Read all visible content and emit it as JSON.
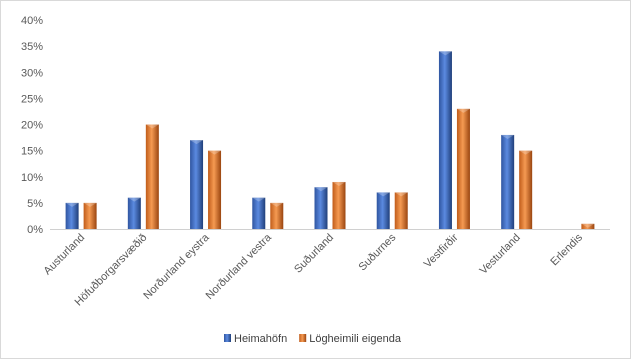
{
  "chart_data": {
    "type": "bar",
    "categories": [
      "Austurland",
      "Höfuðborgarsvæðið",
      "Norðurland eystra",
      "Norðurland vestra",
      "Suðurland",
      "Suðurnes",
      "Vestfirðir",
      "Vesturland",
      "Erlendis"
    ],
    "series": [
      {
        "name": "Heimahöfn",
        "color": "#4472c4",
        "values": [
          5,
          6,
          17,
          6,
          8,
          7,
          34,
          18,
          0
        ]
      },
      {
        "name": "Lögheimili eigenda",
        "color": "#ed7d31",
        "values": [
          5,
          20,
          15,
          5,
          9,
          7,
          23,
          15,
          1
        ]
      }
    ],
    "y_ticks": [
      "0%",
      "5%",
      "10%",
      "15%",
      "20%",
      "25%",
      "30%",
      "35%",
      "40%"
    ],
    "ylim": [
      0,
      40
    ],
    "grid": false,
    "legend_position": "bottom"
  }
}
